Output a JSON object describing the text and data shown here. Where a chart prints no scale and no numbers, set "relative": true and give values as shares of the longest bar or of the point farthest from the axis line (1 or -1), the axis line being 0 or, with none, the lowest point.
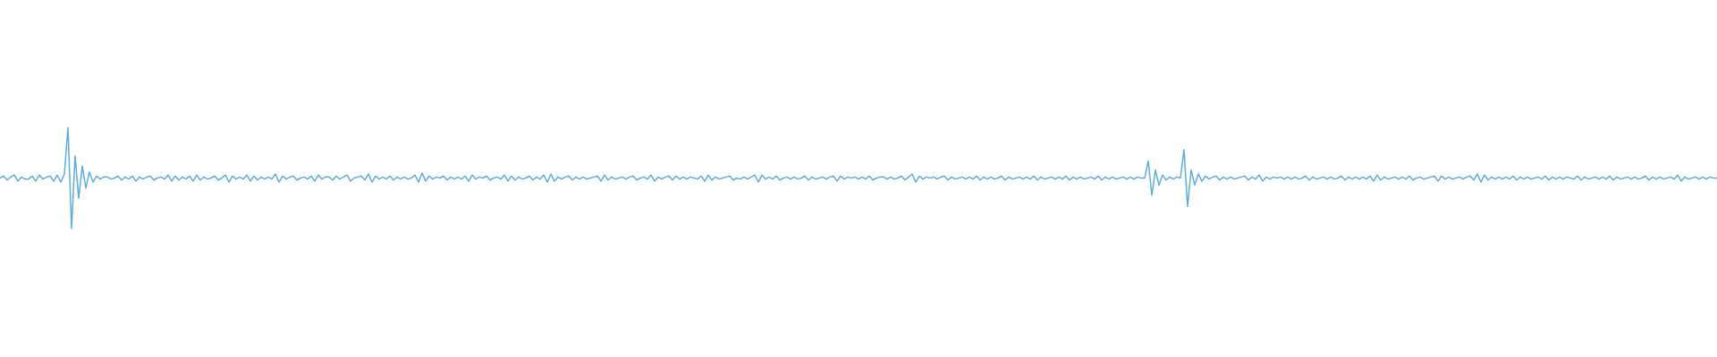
{
  "chart_data": {
    "type": "line",
    "relative": true,
    "color": "#5dade2",
    "categories": [
      null,
      null,
      null,
      null,
      null,
      null,
      null,
      null,
      null,
      null,
      null,
      null,
      null,
      null,
      null,
      null,
      null,
      null,
      null,
      null,
      null,
      null,
      null,
      null,
      null,
      null,
      null,
      null,
      null,
      null,
      null,
      null,
      null,
      null,
      null,
      null,
      null,
      null,
      null,
      null,
      null,
      null,
      null,
      null,
      null,
      null,
      null,
      null,
      null,
      null,
      null,
      null,
      null,
      null,
      null,
      null,
      null,
      null,
      null,
      null,
      null,
      null,
      null,
      null,
      null,
      null,
      null,
      null,
      null,
      null,
      null,
      null,
      null,
      null,
      null,
      null,
      null,
      null,
      null,
      null,
      null,
      null,
      null,
      null,
      null,
      null,
      null,
      null,
      null,
      null,
      null,
      null,
      null,
      null,
      null,
      null,
      null,
      null,
      null,
      null,
      null,
      null,
      null,
      null,
      null,
      null,
      null,
      null,
      null,
      null,
      null,
      null,
      null,
      null,
      null,
      null,
      null,
      null,
      null,
      null,
      null,
      null,
      null,
      null,
      null,
      null,
      null,
      null,
      null,
      null,
      null,
      null,
      null,
      null,
      null,
      null,
      null,
      null,
      null,
      null,
      null,
      null,
      null,
      null,
      null,
      null,
      null,
      null,
      null,
      null,
      null,
      null,
      null,
      null,
      null,
      null,
      null,
      null,
      null,
      null,
      null,
      null,
      null,
      null,
      null,
      null,
      null,
      null,
      null,
      null,
      null,
      null,
      null,
      null,
      null,
      null,
      null,
      null,
      null,
      null,
      null,
      null,
      null,
      null,
      null,
      null,
      null,
      null,
      null,
      null,
      null,
      null,
      null,
      null,
      null,
      null,
      null,
      null,
      null,
      null,
      null,
      null,
      null,
      null,
      null,
      null,
      null,
      null,
      null,
      null,
      null,
      null,
      null,
      null,
      null,
      null,
      null,
      null,
      null,
      null,
      null,
      null,
      null,
      null,
      null,
      null,
      null,
      null,
      null,
      null,
      null,
      null,
      null,
      null,
      null,
      null,
      null,
      null,
      null,
      null,
      null,
      null,
      null,
      null,
      null,
      null,
      null,
      null,
      null,
      null,
      null,
      null,
      null,
      null,
      null,
      null,
      null,
      null,
      null,
      null,
      null,
      null,
      null,
      null,
      null,
      null,
      null,
      null,
      null,
      null,
      null,
      null,
      null,
      null,
      null,
      null,
      null,
      null,
      null,
      null,
      null,
      null,
      null,
      null,
      null,
      null,
      null,
      null,
      null,
      null,
      null,
      null,
      null,
      null,
      null,
      null,
      null,
      null,
      null,
      null,
      null,
      null,
      null,
      null,
      null,
      null,
      null,
      null,
      null,
      null,
      null,
      null,
      null,
      null,
      null,
      null,
      null,
      null,
      null,
      null,
      null,
      null,
      null,
      null,
      null,
      null,
      null,
      null,
      null,
      null,
      null,
      null,
      null,
      null,
      null,
      null,
      null,
      null,
      null,
      null,
      null,
      null,
      null,
      null,
      null,
      null,
      null,
      null,
      null,
      null,
      null,
      null,
      null,
      null,
      null,
      null,
      null,
      null,
      null,
      null,
      null,
      null,
      null,
      null,
      null,
      null,
      null,
      null,
      null,
      null,
      null,
      null,
      null,
      null,
      null,
      null,
      null,
      null,
      null,
      null,
      null,
      null,
      null,
      null,
      null,
      null,
      null,
      null,
      null,
      null,
      null,
      null,
      null,
      null,
      null,
      null,
      null,
      null,
      null,
      null,
      null,
      null,
      null,
      null,
      null,
      null,
      null,
      null,
      null,
      null,
      null,
      null,
      null,
      null,
      null,
      null,
      null,
      null,
      null,
      null,
      null,
      null,
      null,
      null,
      null,
      null,
      null,
      null,
      null,
      null,
      null,
      null,
      null,
      null,
      null,
      null,
      null,
      null,
      null,
      null,
      null,
      null,
      null,
      null,
      null,
      null,
      null,
      null,
      null,
      null,
      null,
      null,
      null,
      null,
      null,
      null,
      null,
      null,
      null,
      null,
      null,
      null,
      null,
      null,
      null,
      null,
      null,
      null,
      null,
      null,
      null,
      null,
      null,
      null,
      null,
      null,
      null,
      null,
      null,
      null,
      null
    ],
    "values": [
      0.5,
      0.52,
      0.48,
      0.51,
      0.53,
      0.47,
      0.51,
      0.49,
      0.49,
      0.52,
      0.47,
      0.53,
      0.49,
      0.51,
      0.52,
      0.47,
      0.53,
      0.46,
      0.54,
      1,
      0,
      0.72,
      0.3,
      0.62,
      0.4,
      0.56,
      0.46,
      0.52,
      0.49,
      0.51,
      0.51,
      0.49,
      0.5,
      0.52,
      0.48,
      0.51,
      0.49,
      0.52,
      0.47,
      0.51,
      0.49,
      0.51,
      0.52,
      0.48,
      0.5,
      0.51,
      0.49,
      0.53,
      0.47,
      0.52,
      0.48,
      0.51,
      0.49,
      0.52,
      0.47,
      0.53,
      0.48,
      0.51,
      0.49,
      0.5,
      0.52,
      0.48,
      0.5,
      0.53,
      0.46,
      0.52,
      0.49,
      0.51,
      0.49,
      0.53,
      0.47,
      0.52,
      0.48,
      0.51,
      0.49,
      0.51,
      0.49,
      0.54,
      0.46,
      0.52,
      0.49,
      0.51,
      0.52,
      0.48,
      0.5,
      0.51,
      0.49,
      0.52,
      0.47,
      0.53,
      0.49,
      0.51,
      0.51,
      0.48,
      0.52,
      0.49,
      0.51,
      0.53,
      0.47,
      0.5,
      0.51,
      0.52,
      0.48,
      0.54,
      0.46,
      0.52,
      0.49,
      0.51,
      0.49,
      0.52,
      0.48,
      0.51,
      0.49,
      0.51,
      0.49,
      0.5,
      0.53,
      0.46,
      0.55,
      0.47,
      0.52,
      0.49,
      0.51,
      0.5,
      0.52,
      0.48,
      0.51,
      0.49,
      0.51,
      0.49,
      0.52,
      0.47,
      0.53,
      0.49,
      0.51,
      0.5,
      0.52,
      0.48,
      0.5,
      0.51,
      0.49,
      0.53,
      0.47,
      0.52,
      0.48,
      0.51,
      0.49,
      0.5,
      0.52,
      0.48,
      0.51,
      0.49,
      0.53,
      0.46,
      0.54,
      0.47,
      0.51,
      0.49,
      0.51,
      0.52,
      0.48,
      0.51,
      0.49,
      0.51,
      0.49,
      0.5,
      0.51,
      0.52,
      0.47,
      0.53,
      0.48,
      0.51,
      0.49,
      0.5,
      0.51,
      0.49,
      0.51,
      0.52,
      0.48,
      0.5,
      0.51,
      0.49,
      0.53,
      0.47,
      0.51,
      0.49,
      0.51,
      0.52,
      0.48,
      0.52,
      0.49,
      0.51,
      0.49,
      0.51,
      0.5,
      0.49,
      0.52,
      0.47,
      0.53,
      0.48,
      0.51,
      0.49,
      0.5,
      0.51,
      0.52,
      0.48,
      0.5,
      0.49,
      0.51,
      0.49,
      0.51,
      0.53,
      0.46,
      0.53,
      0.49,
      0.51,
      0.49,
      0.52,
      0.48,
      0.5,
      0.51,
      0.49,
      0.51,
      0.49,
      0.5,
      0.52,
      0.48,
      0.51,
      0.49,
      0.5,
      0.51,
      0.49,
      0.51,
      0.52,
      0.47,
      0.52,
      0.49,
      0.51,
      0.5,
      0.51,
      0.49,
      0.51,
      0.49,
      0.52,
      0.48,
      0.5,
      0.51,
      0.51,
      0.49,
      0.51,
      0.49,
      0.5,
      0.52,
      0.48,
      0.51,
      0.54,
      0.46,
      0.52,
      0.49,
      0.51,
      0.5,
      0.51,
      0.49,
      0.51,
      0.52,
      0.48,
      0.51,
      0.49,
      0.5,
      0.51,
      0.49,
      0.51,
      0.49,
      0.52,
      0.48,
      0.51,
      0.49,
      0.51,
      0.49,
      0.5,
      0.52,
      0.48,
      0.51,
      0.49,
      0.5,
      0.51,
      0.49,
      0.51,
      0.49,
      0.52,
      0.48,
      0.51,
      0.49,
      0.5,
      0.51,
      0.49,
      0.51,
      0.49,
      0.52,
      0.48,
      0.51,
      0.49,
      0.51,
      0.49,
      0.5,
      0.51,
      0.49,
      0.52,
      0.48,
      0.51,
      0.49,
      0.51,
      0.49,
      0.5,
      0.51,
      0.49,
      0.51,
      0.49,
      0.51,
      0.5,
      0.5,
      0.67,
      0.33,
      0.58,
      0.43,
      0.53,
      0.48,
      0.51,
      0.49,
      0.51,
      0.5,
      0.78,
      0.22,
      0.58,
      0.43,
      0.54,
      0.47,
      0.52,
      0.49,
      0.51,
      0.52,
      0.48,
      0.51,
      0.49,
      0.51,
      0.49,
      0.5,
      0.51,
      0.52,
      0.48,
      0.51,
      0.49,
      0.53,
      0.47,
      0.51,
      0.49,
      0.51,
      0.5,
      0.51,
      0.49,
      0.51,
      0.49,
      0.51,
      0.49,
      0.5,
      0.52,
      0.48,
      0.51,
      0.49,
      0.5,
      0.51,
      0.49,
      0.51,
      0.49,
      0.5,
      0.52,
      0.48,
      0.51,
      0.49,
      0.51,
      0.49,
      0.51,
      0.49,
      0.52,
      0.47,
      0.53,
      0.48,
      0.51,
      0.49,
      0.5,
      0.51,
      0.49,
      0.51,
      0.49,
      0.52,
      0.48,
      0.5,
      0.51,
      0.49,
      0.5,
      0.51,
      0.52,
      0.47,
      0.52,
      0.49,
      0.51,
      0.49,
      0.5,
      0.51,
      0.49,
      0.51,
      0.52,
      0.48,
      0.54,
      0.46,
      0.53,
      0.48,
      0.51,
      0.49,
      0.51,
      0.49,
      0.51,
      0.49,
      0.52,
      0.48,
      0.51,
      0.49,
      0.51,
      0.49,
      0.5,
      0.51,
      0.49,
      0.52,
      0.48,
      0.51,
      0.49,
      0.51,
      0.49,
      0.51,
      0.5,
      0.49,
      0.52,
      0.48,
      0.51,
      0.49,
      0.5,
      0.51,
      0.49,
      0.51,
      0.49,
      0.52,
      0.48,
      0.51,
      0.49,
      0.5,
      0.51,
      0.49,
      0.51,
      0.49,
      0.5,
      0.52,
      0.48,
      0.51,
      0.49,
      0.51,
      0.49,
      0.5,
      0.51,
      0.49,
      0.53,
      0.47,
      0.51,
      0.49,
      0.5,
      0.51,
      0.49,
      0.51,
      0.49,
      0.51,
      0.5,
      0.5
    ]
  }
}
